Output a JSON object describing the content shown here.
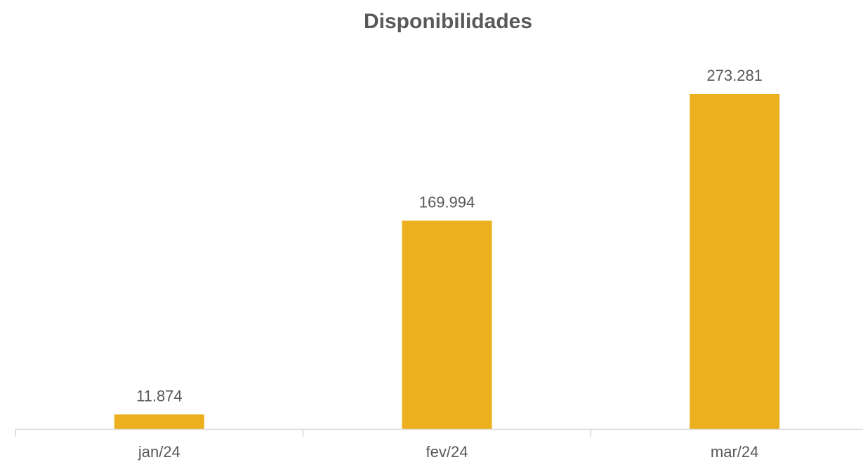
{
  "chart_data": {
    "type": "bar",
    "title": "Disponibilidades",
    "categories": [
      "jan/24",
      "fev/24",
      "mar/24"
    ],
    "values": [
      11874,
      169994,
      273281
    ],
    "value_labels": [
      "11.874",
      "169.994",
      "273.281"
    ],
    "xlabel": "",
    "ylabel": "",
    "ylim": [
      0,
      300000
    ],
    "grid": false,
    "legend": "none",
    "bar_color": "#ECB01F",
    "axis_color": "#D9D9D9"
  }
}
